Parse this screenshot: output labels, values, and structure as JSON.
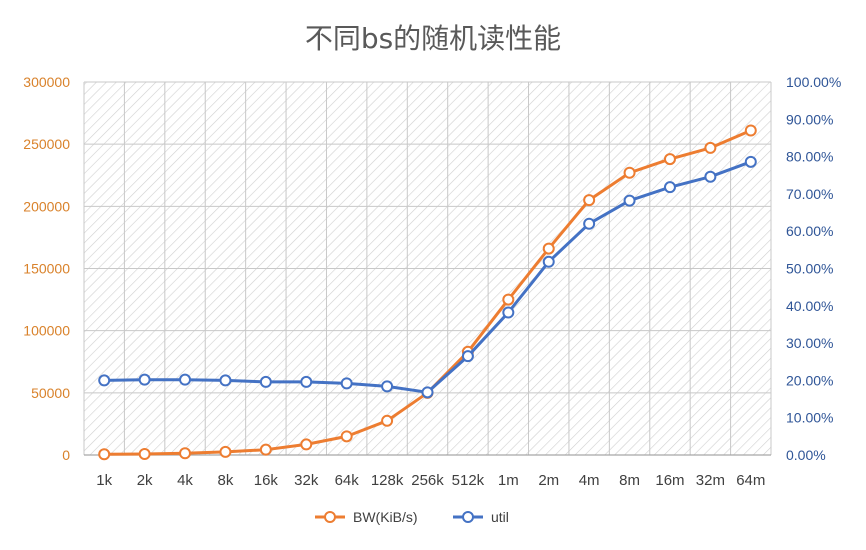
{
  "chart_data": {
    "type": "line",
    "title": "不同bs的随机读性能",
    "categories": [
      "1k",
      "2k",
      "4k",
      "8k",
      "16k",
      "32k",
      "64k",
      "128k",
      "256k",
      "512k",
      "1m",
      "2m",
      "4m",
      "8m",
      "16m",
      "32m",
      "64m"
    ],
    "series": [
      {
        "name": "BW(KiB/s)",
        "axis": "left",
        "color": "#ed7d31",
        "values": [
          600,
          800,
          1400,
          2500,
          4300,
          8500,
          15000,
          27500,
          50000,
          83000,
          125000,
          166000,
          205000,
          227000,
          238000,
          247000,
          261000
        ]
      },
      {
        "name": "util",
        "axis": "right",
        "color": "#4472c4",
        "values": [
          20.0,
          20.2,
          20.2,
          20.0,
          19.6,
          19.6,
          19.2,
          18.4,
          16.8,
          26.5,
          38.2,
          51.8,
          62.0,
          68.2,
          71.8,
          74.6,
          78.6
        ]
      }
    ],
    "y_left": {
      "min": 0,
      "max": 300000,
      "ticks": [
        "0",
        "50000",
        "100000",
        "150000",
        "200000",
        "250000",
        "300000"
      ],
      "color": "#d9822b"
    },
    "y_right": {
      "min": 0,
      "max": 100,
      "ticks": [
        "0.00%",
        "10.00%",
        "20.00%",
        "30.00%",
        "40.00%",
        "50.00%",
        "60.00%",
        "70.00%",
        "80.00%",
        "90.00%",
        "100.00%"
      ],
      "color": "#2f5597"
    },
    "grid": true,
    "legend_position": "bottom"
  }
}
